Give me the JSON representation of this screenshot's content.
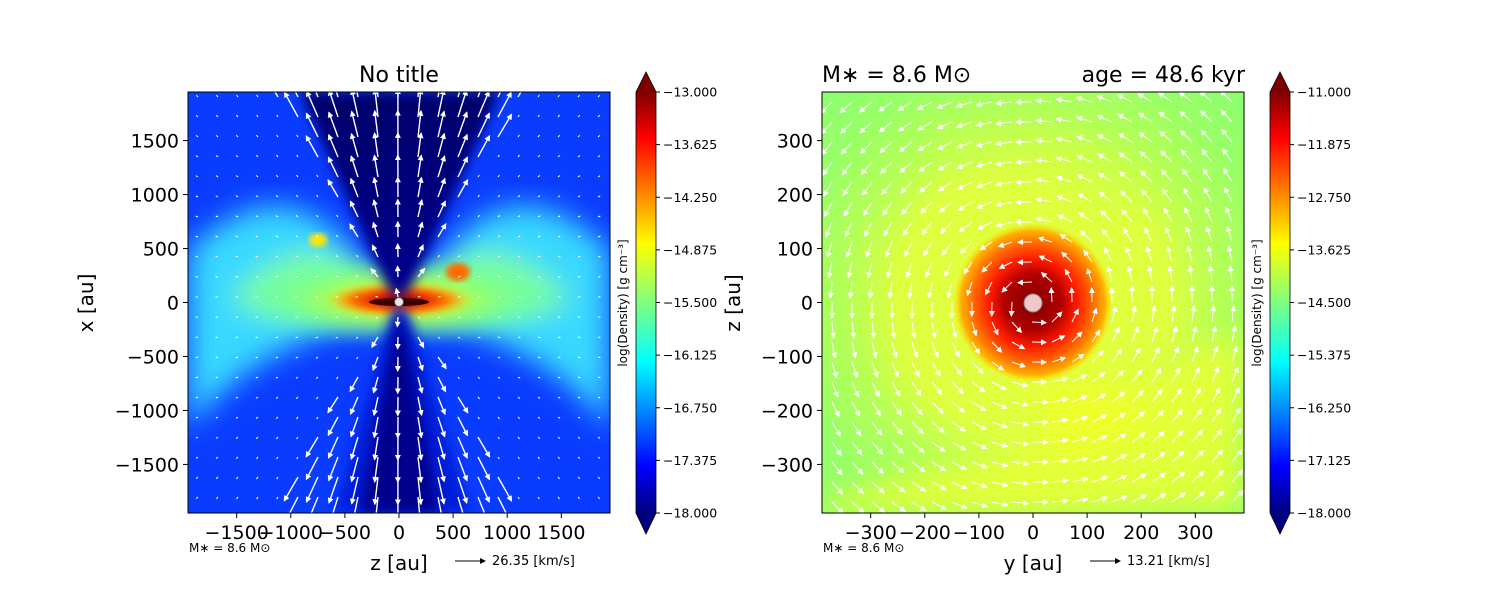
{
  "chart_data": [
    {
      "type": "heatmap",
      "title": "No title",
      "xlabel": "z [au]",
      "ylabel": "x [au]",
      "xlim": [
        -1950,
        1950
      ],
      "ylim": [
        -1950,
        1950
      ],
      "x_ticks": [
        -1500,
        -1000,
        -500,
        0,
        500,
        1000,
        1500
      ],
      "x_tick_labels": [
        "−1500",
        "−1000",
        "−500",
        "0",
        "500",
        "1000",
        "1500"
      ],
      "y_ticks": [
        1500,
        1000,
        500,
        0,
        -500,
        -1000,
        -1500
      ],
      "y_tick_labels": [
        "1500",
        "1000",
        "500",
        "0",
        "−500",
        "−1000",
        "−1500"
      ],
      "colorbar": {
        "label": "log(Density) [g cm$^{-3}$]",
        "label_display": "log(Density) [g cm⁻³]",
        "range": [
          -18.0,
          -13.0
        ],
        "ticks": [
          -13.0,
          -13.625,
          -14.25,
          -14.875,
          -15.5,
          -16.125,
          -16.75,
          -17.375,
          -18.0
        ],
        "tick_labels": [
          "−13.000",
          "−13.625",
          "−14.250",
          "−14.875",
          "−15.500",
          "−16.125",
          "−16.750",
          "−17.375",
          "−18.000"
        ],
        "colormap": "jet",
        "extend": "both"
      },
      "annotation_mass": "M∗ = 8.6 M⊙",
      "vector_key": "26.35 [km/s]",
      "vector_field": "bipolar outflow along x-axis, disk in z-plane",
      "grid": false
    },
    {
      "type": "heatmap",
      "title_left": "M∗ = 8.6 M⊙",
      "title_right": "age = 48.6 kyr",
      "xlabel": "y [au]",
      "ylabel": "z [au]",
      "xlim": [
        -390,
        390
      ],
      "ylim": [
        -390,
        390
      ],
      "x_ticks": [
        -300,
        -200,
        -100,
        0,
        100,
        200,
        300
      ],
      "x_tick_labels": [
        "−300",
        "−200",
        "−100",
        "0",
        "100",
        "200",
        "300"
      ],
      "y_ticks": [
        300,
        200,
        100,
        0,
        -100,
        -200,
        -300
      ],
      "y_tick_labels": [
        "300",
        "200",
        "100",
        "0",
        "−100",
        "−200",
        "−300"
      ],
      "colorbar": {
        "label": "log(Density) [g cm$^{-3}$]",
        "label_display": "log(Density) [g cm⁻³]",
        "range": [
          -18.0,
          -11.0
        ],
        "ticks": [
          -11.0,
          -11.875,
          -12.75,
          -13.625,
          -14.5,
          -15.375,
          -16.25,
          -17.125,
          -18.0
        ],
        "tick_labels": [
          "−11.000",
          "−11.875",
          "−12.750",
          "−13.625",
          "−14.500",
          "−15.375",
          "−16.250",
          "−17.125",
          "−18.000"
        ],
        "colormap": "jet",
        "extend": "both"
      },
      "annotation_mass": "M∗ = 8.6 M⊙",
      "vector_key": "13.21 [km/s]",
      "vector_field": "counter-clockwise rotation around center",
      "grid": false
    }
  ]
}
